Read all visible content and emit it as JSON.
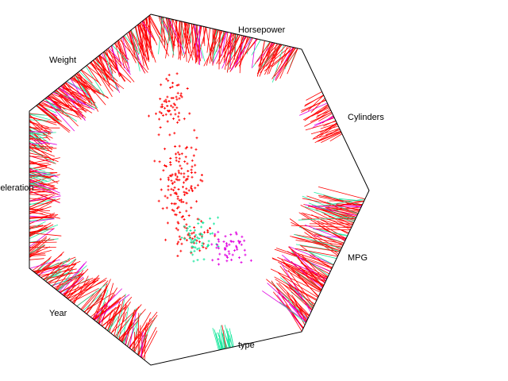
{
  "chart_data": {
    "type": "scatter",
    "title": "",
    "plot_style": "radviz",
    "anchors": [
      {
        "name": "Horsepower"
      },
      {
        "name": "Cylinders"
      },
      {
        "name": "MPG"
      },
      {
        "name": "type"
      },
      {
        "name": "Year"
      },
      {
        "name": "Acceleration"
      },
      {
        "name": "Weight"
      }
    ],
    "visible_anchor_text": {
      "Horsepower": "Horsepower",
      "Cylinders": "Cylinders",
      "MPG": "MPG",
      "type": "type",
      "Year": "Year",
      "Acceleration": "Acceleration",
      "Weight": "Weight"
    },
    "classes": [
      {
        "color": "#ff0000",
        "count": 250
      },
      {
        "color": "#1ee8a0",
        "count": 75
      },
      {
        "color": "#e000e0",
        "count": 70
      }
    ],
    "grid": false,
    "legend": "none"
  }
}
